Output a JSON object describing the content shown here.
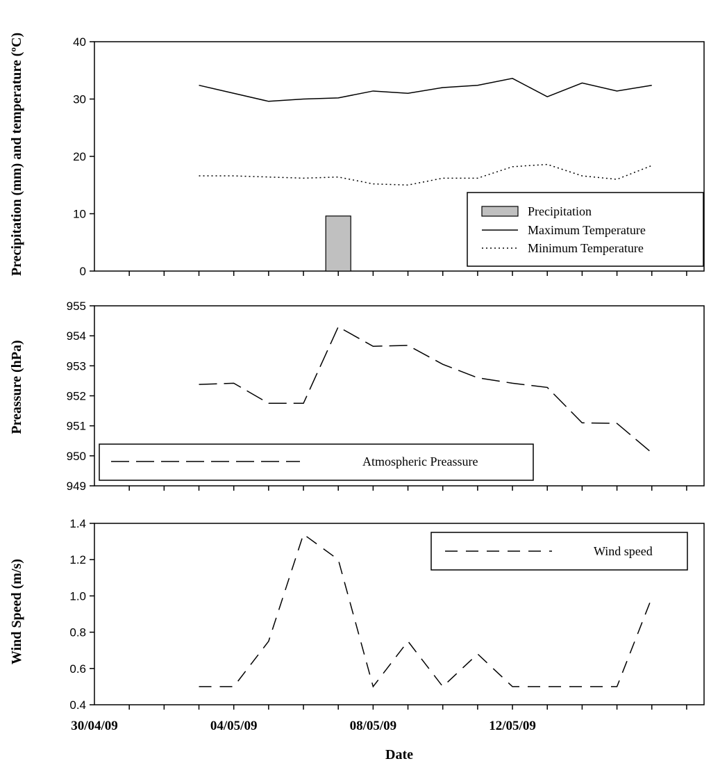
{
  "chart_data": [
    {
      "type": "bar+line",
      "ylabel": "Precipitation (mm) and temperature (ºC)",
      "ylim": [
        0,
        40
      ],
      "yticks": [
        0,
        10,
        20,
        30,
        40
      ],
      "x": [
        1,
        2,
        3,
        4,
        5,
        6,
        7,
        8,
        9,
        10,
        11,
        12,
        13,
        14
      ],
      "series": [
        {
          "name": "Precipitation",
          "kind": "bar",
          "color": "#c0c0c0",
          "x": [
            5
          ],
          "values": [
            9.6
          ]
        },
        {
          "name": "Maximum Temperature",
          "kind": "line",
          "style": "solid",
          "values": [
            32.4,
            31.0,
            29.6,
            30.0,
            30.2,
            31.4,
            31.0,
            32.0,
            32.4,
            33.6,
            30.4,
            32.8,
            31.4,
            32.4
          ]
        },
        {
          "name": "Minimum Temperature",
          "kind": "line",
          "style": "dotted",
          "values": [
            16.6,
            16.6,
            16.4,
            16.2,
            16.4,
            15.2,
            15.0,
            16.2,
            16.2,
            18.2,
            18.6,
            16.6,
            16.0,
            18.4
          ]
        }
      ],
      "legend": [
        "Precipitation",
        "Maximum Temperature",
        "Minimum Temperature"
      ],
      "legend_position": "bottom-right"
    },
    {
      "type": "line",
      "ylabel": "Preassure (hPa)",
      "ylim": [
        949,
        955
      ],
      "yticks": [
        949,
        950,
        951,
        952,
        953,
        954,
        955
      ],
      "x": [
        1,
        2,
        3,
        4,
        5,
        6,
        7,
        8,
        9,
        10,
        11,
        12,
        13,
        14
      ],
      "series": [
        {
          "name": "Atmospheric Preassure",
          "style": "long-dash",
          "values": [
            952.38,
            952.42,
            951.75,
            951.75,
            954.3,
            953.65,
            953.68,
            953.05,
            952.6,
            952.42,
            952.28,
            951.1,
            951.08,
            950.1
          ]
        }
      ],
      "legend": [
        "Atmospheric Preassure"
      ],
      "legend_position": "bottom-left"
    },
    {
      "type": "line",
      "ylabel": "Wind Speed (m/s)",
      "ylim": [
        0.4,
        1.4
      ],
      "yticks": [
        "0.4",
        "0.6",
        "0.8",
        "1.0",
        "1.2",
        "1.4"
      ],
      "x": [
        1,
        2,
        3,
        4,
        5,
        6,
        7,
        8,
        9,
        10,
        11,
        12,
        13,
        14
      ],
      "series": [
        {
          "name": "Wind speed",
          "style": "dash",
          "values": [
            0.5,
            0.5,
            0.75,
            1.34,
            1.2,
            0.5,
            0.75,
            0.5,
            0.68,
            0.5,
            0.5,
            0.5,
            0.5,
            0.99
          ]
        }
      ],
      "legend": [
        "Wind speed"
      ],
      "legend_position": "top-right"
    }
  ],
  "x_axis": {
    "xlabel": "Date",
    "xlim": [
      -2,
      15.5
    ],
    "tick_positions": [
      -2,
      2,
      6,
      10
    ],
    "tick_labels": [
      "30/04/09",
      "04/05/09",
      "08/05/09",
      "12/05/09"
    ],
    "minor_ticks": [
      -1,
      0,
      1,
      2,
      3,
      4,
      5,
      6,
      7,
      8,
      9,
      10,
      11,
      12,
      13,
      14,
      15
    ]
  }
}
